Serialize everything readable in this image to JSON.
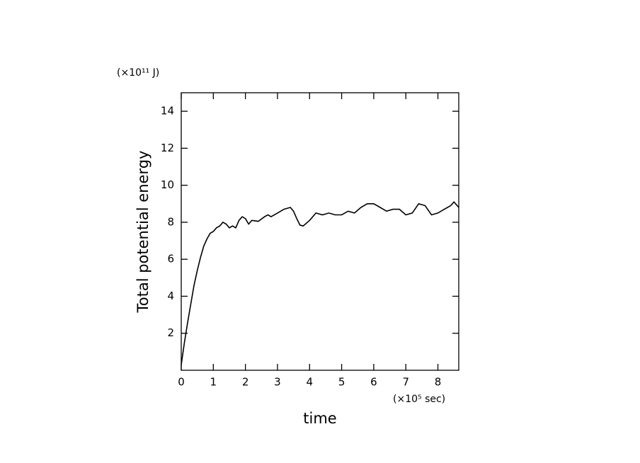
{
  "chart_data": {
    "type": "line",
    "y_label": "Total potential energy",
    "x_label": "time",
    "y_unit": "(×10¹¹ J)",
    "x_unit": "(×10⁵ sec)",
    "xlim": [
      0,
      8.65
    ],
    "ylim": [
      0,
      15
    ],
    "xticks": [
      0,
      1,
      2,
      3,
      4,
      5,
      6,
      7,
      8
    ],
    "yticks": [
      2,
      4,
      6,
      8,
      10,
      12,
      14
    ],
    "series": [
      {
        "name": "Total potential energy",
        "color": "#000000",
        "x": [
          0,
          0.1,
          0.2,
          0.3,
          0.4,
          0.5,
          0.6,
          0.7,
          0.8,
          0.9,
          1.0,
          1.1,
          1.2,
          1.3,
          1.4,
          1.5,
          1.6,
          1.7,
          1.8,
          1.9,
          2.0,
          2.1,
          2.2,
          2.4,
          2.6,
          2.7,
          2.8,
          3.0,
          3.2,
          3.4,
          3.5,
          3.6,
          3.7,
          3.8,
          4.0,
          4.2,
          4.4,
          4.6,
          4.8,
          5.0,
          5.2,
          5.4,
          5.6,
          5.8,
          6.0,
          6.2,
          6.4,
          6.6,
          6.8,
          7.0,
          7.2,
          7.4,
          7.6,
          7.8,
          8.0,
          8.2,
          8.4,
          8.5,
          8.65
        ],
        "values": [
          0.3,
          1.5,
          2.6,
          3.6,
          4.6,
          5.4,
          6.1,
          6.7,
          7.1,
          7.4,
          7.5,
          7.7,
          7.8,
          8.0,
          7.9,
          7.7,
          7.8,
          7.7,
          8.1,
          8.3,
          8.2,
          7.9,
          8.1,
          8.05,
          8.3,
          8.4,
          8.3,
          8.5,
          8.7,
          8.8,
          8.6,
          8.2,
          7.85,
          7.8,
          8.1,
          8.5,
          8.4,
          8.5,
          8.4,
          8.4,
          8.6,
          8.5,
          8.8,
          9.0,
          9.0,
          8.8,
          8.6,
          8.7,
          8.7,
          8.4,
          8.5,
          9.0,
          8.9,
          8.4,
          8.5,
          8.7,
          8.9,
          9.1,
          8.8
        ]
      }
    ]
  }
}
